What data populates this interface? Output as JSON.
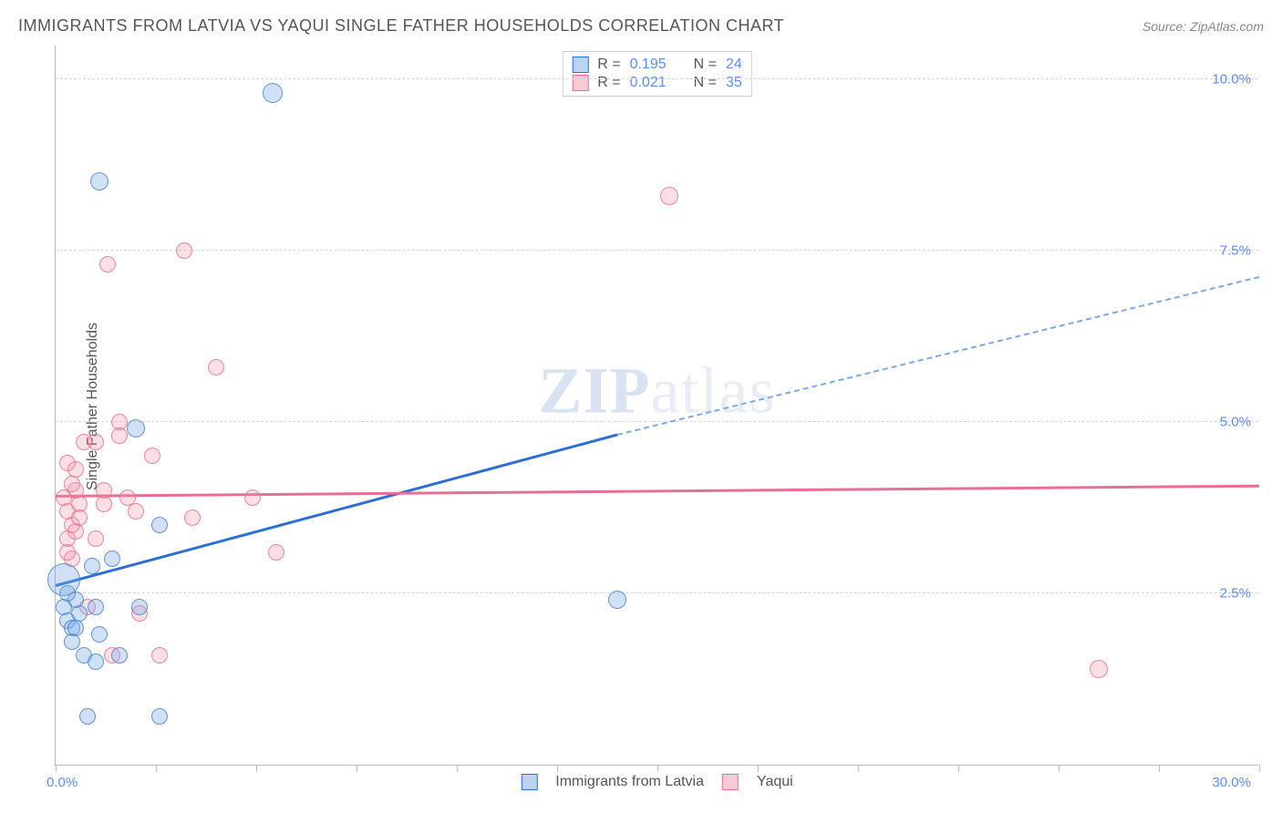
{
  "header": {
    "title": "IMMIGRANTS FROM LATVIA VS YAQUI SINGLE FATHER HOUSEHOLDS CORRELATION CHART",
    "source": "Source: ZipAtlas.com"
  },
  "ylabel": "Single Father Households",
  "watermark": {
    "bold": "ZIP",
    "rest": "atlas"
  },
  "chart": {
    "type": "scatter",
    "xlim": [
      0,
      30
    ],
    "ylim": [
      0,
      10.5
    ],
    "ytick_positions": [
      2.5,
      5.0,
      7.5,
      10.0
    ],
    "ytick_labels": [
      "2.5%",
      "5.0%",
      "7.5%",
      "10.0%"
    ],
    "xtick_positions": [
      0,
      2.5,
      5,
      7.5,
      10,
      12.5,
      15,
      17.5,
      20,
      22.5,
      25,
      27.5,
      30
    ],
    "xlabel_min": "0.0%",
    "xlabel_max": "30.0%",
    "grid_color": "#d5d5d5",
    "axis_color": "#bbbbbb",
    "background_color": "#ffffff",
    "label_color": "#5b8def",
    "text_color": "#555555",
    "point_radius_default": 9,
    "series": {
      "blue": {
        "label": "Immigrants from Latvia",
        "fill": "rgba(120,170,230,0.35)",
        "stroke": "rgba(70,130,200,0.8)",
        "R": "0.195",
        "N": "24",
        "trend": {
          "x0": 0,
          "y0": 2.6,
          "x1_solid": 14,
          "y1_solid": 4.8,
          "x1_dash": 30,
          "y1_dash": 7.1
        },
        "points": [
          {
            "x": 0.2,
            "y": 2.3,
            "r": 9
          },
          {
            "x": 0.3,
            "y": 2.1,
            "r": 9
          },
          {
            "x": 0.4,
            "y": 2.0,
            "r": 9
          },
          {
            "x": 0.6,
            "y": 2.2,
            "r": 9
          },
          {
            "x": 0.5,
            "y": 2.4,
            "r": 9
          },
          {
            "x": 0.3,
            "y": 2.5,
            "r": 9
          },
          {
            "x": 0.2,
            "y": 2.7,
            "r": 18
          },
          {
            "x": 0.7,
            "y": 1.6,
            "r": 9
          },
          {
            "x": 1.0,
            "y": 1.5,
            "r": 9
          },
          {
            "x": 1.4,
            "y": 3.0,
            "r": 9
          },
          {
            "x": 1.0,
            "y": 2.3,
            "r": 9
          },
          {
            "x": 1.1,
            "y": 1.9,
            "r": 9
          },
          {
            "x": 0.8,
            "y": 0.7,
            "r": 9
          },
          {
            "x": 2.6,
            "y": 0.7,
            "r": 9
          },
          {
            "x": 2.1,
            "y": 2.3,
            "r": 9
          },
          {
            "x": 2.6,
            "y": 3.5,
            "r": 9
          },
          {
            "x": 2.0,
            "y": 4.9,
            "r": 10
          },
          {
            "x": 1.1,
            "y": 8.5,
            "r": 10
          },
          {
            "x": 5.4,
            "y": 9.8,
            "r": 11
          },
          {
            "x": 14.0,
            "y": 2.4,
            "r": 10
          },
          {
            "x": 0.9,
            "y": 2.9,
            "r": 9
          },
          {
            "x": 0.4,
            "y": 1.8,
            "r": 9
          },
          {
            "x": 1.6,
            "y": 1.6,
            "r": 9
          },
          {
            "x": 0.5,
            "y": 2.0,
            "r": 9
          }
        ]
      },
      "pink": {
        "label": "Yaqui",
        "fill": "rgba(240,150,170,0.3)",
        "stroke": "rgba(230,110,140,0.8)",
        "R": "0.021",
        "N": "35",
        "trend": {
          "x0": 0,
          "y0": 3.9,
          "x1": 30,
          "y1": 4.05
        },
        "points": [
          {
            "x": 0.3,
            "y": 3.3,
            "r": 9
          },
          {
            "x": 0.4,
            "y": 3.5,
            "r": 9
          },
          {
            "x": 0.5,
            "y": 3.4,
            "r": 9
          },
          {
            "x": 0.3,
            "y": 3.7,
            "r": 9
          },
          {
            "x": 0.6,
            "y": 3.8,
            "r": 9
          },
          {
            "x": 0.5,
            "y": 4.0,
            "r": 9
          },
          {
            "x": 0.4,
            "y": 4.1,
            "r": 9
          },
          {
            "x": 0.7,
            "y": 4.7,
            "r": 9
          },
          {
            "x": 1.2,
            "y": 3.8,
            "r": 9
          },
          {
            "x": 1.2,
            "y": 4.0,
            "r": 9
          },
          {
            "x": 1.0,
            "y": 4.7,
            "r": 9
          },
          {
            "x": 1.6,
            "y": 4.8,
            "r": 9
          },
          {
            "x": 1.6,
            "y": 5.0,
            "r": 9
          },
          {
            "x": 1.8,
            "y": 3.9,
            "r": 9
          },
          {
            "x": 2.0,
            "y": 3.7,
            "r": 9
          },
          {
            "x": 2.4,
            "y": 4.5,
            "r": 9
          },
          {
            "x": 1.3,
            "y": 7.3,
            "r": 9
          },
          {
            "x": 3.2,
            "y": 7.5,
            "r": 9
          },
          {
            "x": 4.0,
            "y": 5.8,
            "r": 9
          },
          {
            "x": 3.4,
            "y": 3.6,
            "r": 9
          },
          {
            "x": 4.9,
            "y": 3.9,
            "r": 9
          },
          {
            "x": 5.5,
            "y": 3.1,
            "r": 9
          },
          {
            "x": 2.1,
            "y": 2.2,
            "r": 9
          },
          {
            "x": 2.6,
            "y": 1.6,
            "r": 9
          },
          {
            "x": 1.4,
            "y": 1.6,
            "r": 9
          },
          {
            "x": 0.8,
            "y": 2.3,
            "r": 9
          },
          {
            "x": 0.4,
            "y": 3.0,
            "r": 9
          },
          {
            "x": 0.3,
            "y": 3.1,
            "r": 9
          },
          {
            "x": 0.5,
            "y": 4.3,
            "r": 9
          },
          {
            "x": 0.6,
            "y": 3.6,
            "r": 9
          },
          {
            "x": 0.2,
            "y": 3.9,
            "r": 9
          },
          {
            "x": 15.3,
            "y": 8.3,
            "r": 10
          },
          {
            "x": 26.0,
            "y": 1.4,
            "r": 10
          },
          {
            "x": 1.0,
            "y": 3.3,
            "r": 9
          },
          {
            "x": 0.3,
            "y": 4.4,
            "r": 9
          }
        ]
      }
    }
  },
  "stat_box": {
    "r_label": "R =",
    "n_label": "N ="
  },
  "bottom_legend": {
    "items": [
      "Immigrants from Latvia",
      "Yaqui"
    ]
  }
}
